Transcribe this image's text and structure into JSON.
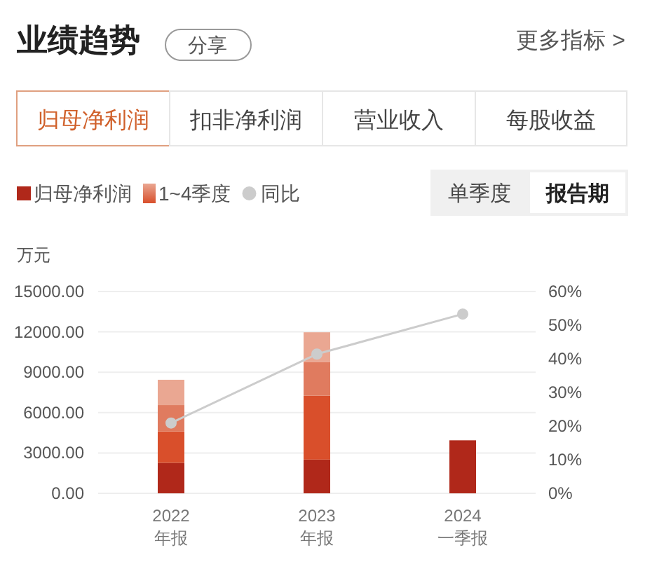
{
  "chart_data": {
    "type": "bar",
    "title": "业绩趋势",
    "ylabel": "万元",
    "stacked": true,
    "grid": "y",
    "legend": "top left",
    "annotations": [
      "分享",
      "更多指标 >",
      "归母净利润",
      "扣非净利润",
      "营业收入",
      "每股收益",
      "单季度",
      "报告期"
    ],
    "categories": [
      "2022\n年报",
      "2023\n年报",
      "2024\n一季报"
    ],
    "series": [
      {
        "name": "归母净利润",
        "color": "#b0281a",
        "values": [
          2270,
          2510,
          3940
        ]
      },
      {
        "name": "1~4季度",
        "color": "#d94f2b",
        "values": [
          2330,
          4750,
          null
        ]
      },
      {
        "color": "#e07b5f",
        "values": [
          1960,
          2510,
          null
        ]
      },
      {
        "color": "#eaa792",
        "values": [
          1880,
          2200,
          null
        ]
      },
      {
        "name": "同比",
        "type": "line",
        "axis": "y2",
        "color": "#cccccc",
        "marker": "circle",
        "values": [
          20.9,
          41.4,
          53.3
        ]
      }
    ],
    "ylim": [
      0,
      15000
    ],
    "yticks": [
      {
        "value": 0,
        "label": "0.00"
      },
      {
        "value": 3000,
        "label": "3000.00"
      },
      {
        "value": 6000,
        "label": "6000.00"
      },
      {
        "value": 9000,
        "label": "9000.00"
      },
      {
        "value": 12000,
        "label": "12000.00"
      },
      {
        "value": 15000,
        "label": "15000.00"
      }
    ],
    "y2lim": [
      0,
      60
    ],
    "y2ticks": [
      {
        "value": 0,
        "label": "0%"
      },
      {
        "value": 10,
        "label": "10%"
      },
      {
        "value": 20,
        "label": "20%"
      },
      {
        "value": 30,
        "label": "30%"
      },
      {
        "value": 40,
        "label": "40%"
      },
      {
        "value": 50,
        "label": "50%"
      },
      {
        "value": 60,
        "label": "60%"
      }
    ]
  }
}
